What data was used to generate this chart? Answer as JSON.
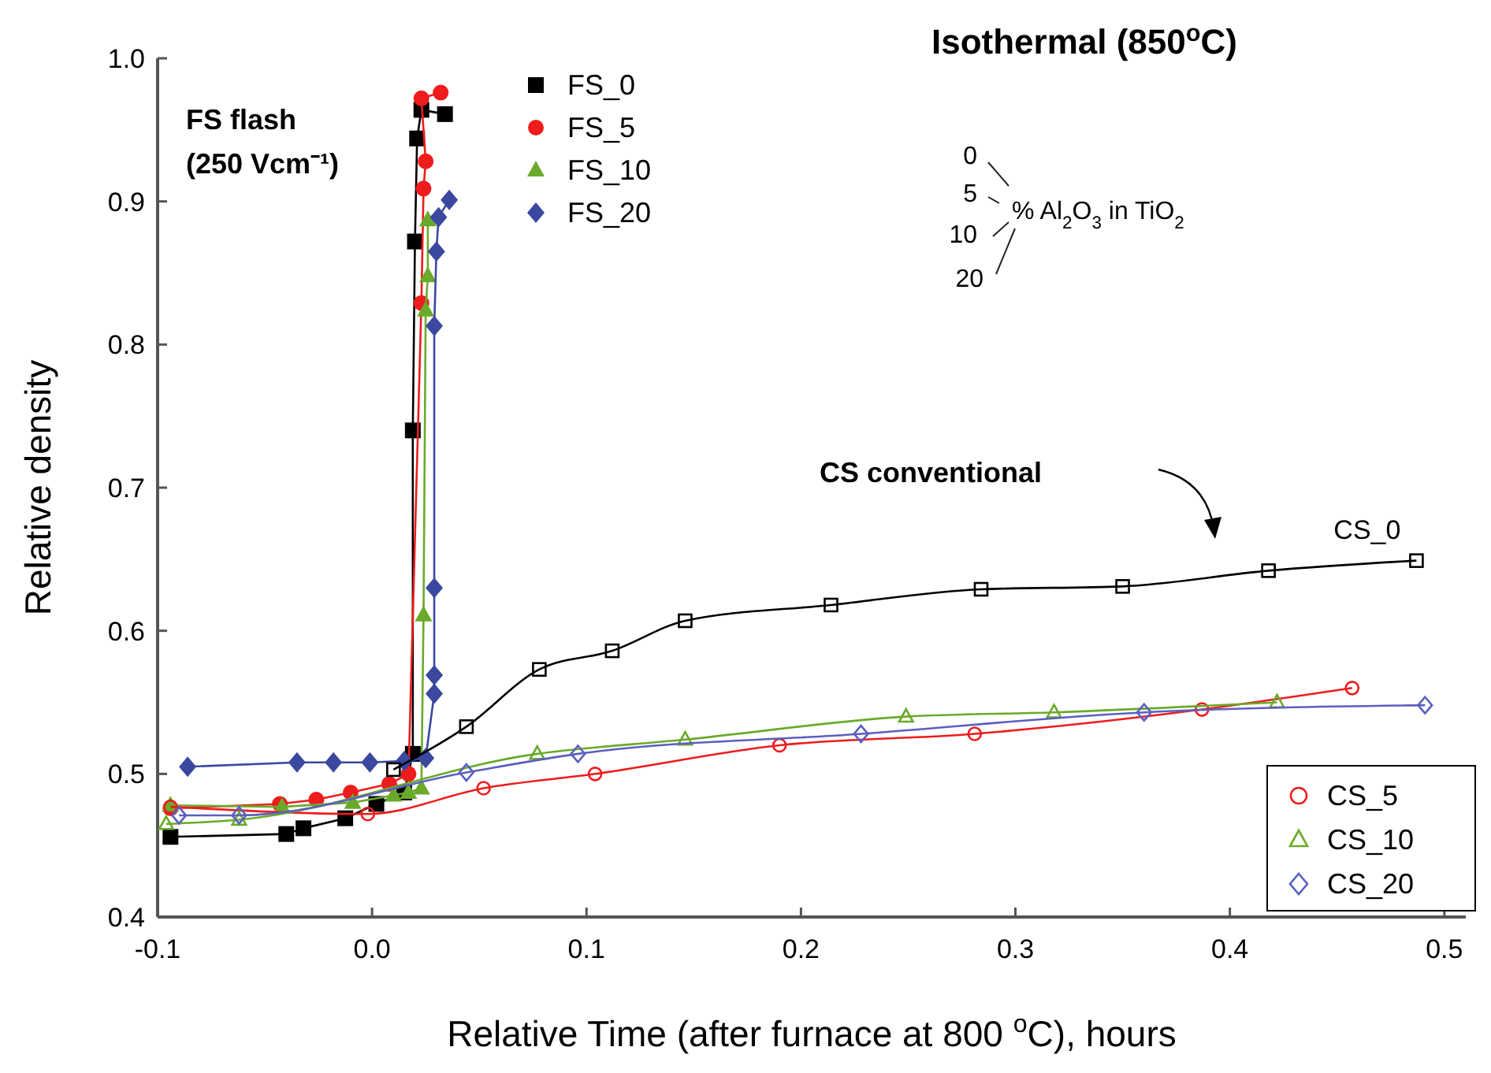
{
  "chart_data": {
    "type": "line",
    "title": "Isothermal (850$^{o}$C)",
    "xlabel": "Relative Time (after furnace at 800 $^{o}$C), hours",
    "ylabel": "Relative density",
    "xlim": [
      -0.1,
      0.51
    ],
    "ylim": [
      0.4,
      1.0
    ],
    "xticks": [
      -0.1,
      {
        "value": 0,
        "label": "0.0"
      },
      0.1,
      0.2,
      0.3,
      0.4,
      0.5
    ],
    "yticks": [
      0.4,
      0.5,
      0.6,
      0.7,
      0.8,
      0.9,
      {
        "value": 1,
        "label": "1.0"
      }
    ],
    "grid": false,
    "legend": "top",
    "line_style": "solid",
    "annotations": [
      "FS flash",
      "(250 Vcm⁻¹)",
      "CS conventional",
      "0",
      "5",
      "10",
      "20",
      "% Al$_{2}$O$_{3}$ in TiO$_{2}$"
    ],
    "series": [
      {
        "name": "FS_0",
        "color": "#000000",
        "marker": "square",
        "x": [
          -0.094,
          -0.04,
          -0.032,
          -0.0125,
          0.002,
          0.015,
          0.019,
          0.019,
          0.02,
          0.021,
          0.023,
          0.034
        ],
        "values": [
          0.456,
          0.458,
          0.462,
          0.469,
          0.479,
          0.487,
          0.514,
          0.74,
          0.872,
          0.944,
          0.964,
          0.961
        ]
      },
      {
        "name": "FS_5",
        "color": "#ee1c1c",
        "marker": "circle",
        "x": [
          -0.094,
          -0.043,
          -0.026,
          -0.01,
          0.008,
          0.017,
          0.023,
          0.024,
          0.025,
          0.023,
          0.032
        ],
        "values": [
          0.476,
          0.479,
          0.482,
          0.487,
          0.493,
          0.5,
          0.829,
          0.909,
          0.928,
          0.972,
          0.976
        ]
      },
      {
        "name": "FS_10",
        "color": "#6aaa2a",
        "marker": "triangle",
        "x": [
          -0.094,
          -0.042,
          -0.009,
          0.01,
          0.017,
          0.023,
          0.024,
          0.025,
          0.026,
          0.026
        ],
        "values": [
          0.478,
          0.477,
          0.48,
          0.485,
          0.487,
          0.49,
          0.611,
          0.824,
          0.848,
          0.887
        ]
      },
      {
        "name": "FS_20",
        "color": "#3b48a0",
        "marker": "diamond",
        "x": [
          -0.086,
          -0.035,
          -0.018,
          -0.001,
          0.015,
          0.025,
          0.029,
          0.029,
          0.029,
          0.029,
          0.03,
          0.031,
          0.036
        ],
        "values": [
          0.505,
          0.508,
          0.508,
          0.508,
          0.509,
          0.511,
          0.556,
          0.569,
          0.63,
          0.813,
          0.865,
          0.889,
          0.901
        ]
      },
      {
        "name": "CS_0",
        "color": "#000000",
        "marker": "square",
        "x": [
          0.01,
          0.044,
          0.078,
          0.112,
          0.146,
          0.214,
          0.284,
          0.35,
          0.418,
          0.487
        ],
        "values": [
          0.503,
          0.533,
          0.573,
          0.586,
          0.607,
          0.618,
          0.629,
          0.631,
          0.642,
          0.649
        ]
      },
      {
        "name": "CS_5",
        "color": "#ee1c1c",
        "marker": "circle",
        "x": [
          -0.094,
          -0.002,
          0.052,
          0.104,
          0.19,
          0.281,
          0.387,
          0.457
        ],
        "values": [
          0.477,
          0.472,
          0.49,
          0.5,
          0.52,
          0.528,
          0.545,
          0.56
        ]
      },
      {
        "name": "CS_10",
        "color": "#6aaa2a",
        "marker": "triangle",
        "x": [
          -0.096,
          -0.062,
          0.077,
          0.146,
          0.249,
          0.318,
          0.422
        ],
        "values": [
          0.465,
          0.468,
          0.514,
          0.524,
          0.54,
          0.543,
          0.55
        ]
      },
      {
        "name": "CS_20",
        "color": "#5b5fc0",
        "marker": "diamond",
        "x": [
          -0.09,
          -0.062,
          0.044,
          0.096,
          0.228,
          0.36,
          0.491
        ],
        "values": [
          0.471,
          0.471,
          0.501,
          0.514,
          0.528,
          0.543,
          0.548
        ]
      }
    ]
  }
}
